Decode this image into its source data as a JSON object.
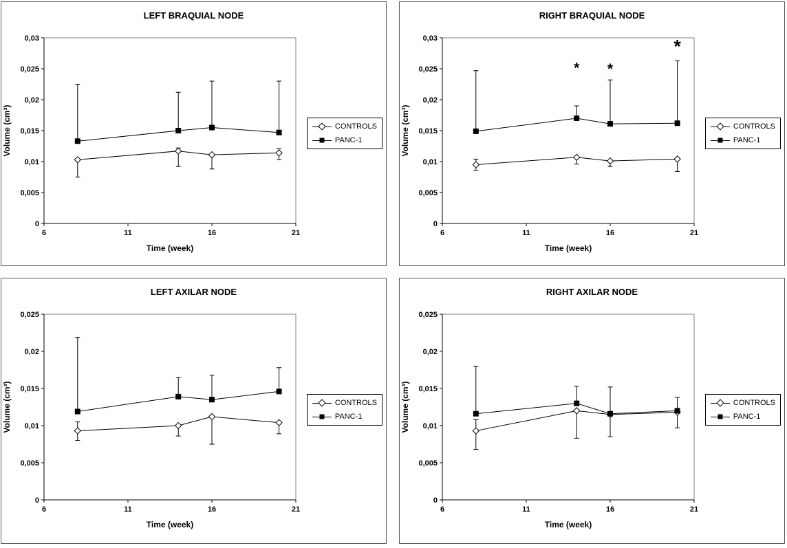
{
  "chart_data": [
    {
      "type": "line",
      "title": "LEFT BRAQUIAL NODE",
      "xlabel": "Time (week)",
      "ylabel": "Volume (cm³)",
      "xlim": [
        6,
        21
      ],
      "xticks": [
        6,
        11,
        16,
        21
      ],
      "xtick_labels": [
        "6",
        "11",
        "16",
        "21"
      ],
      "ylim": [
        0,
        0.03
      ],
      "yticks": [
        0,
        0.005,
        0.01,
        0.015,
        0.02,
        0.025,
        0.03
      ],
      "ytick_labels": [
        "0",
        "0,005",
        "0,01",
        "0,015",
        "0,02",
        "0,025",
        "0,03"
      ],
      "x": [
        8,
        14,
        16,
        20
      ],
      "grid": false,
      "legend_position": "right",
      "series": [
        {
          "name": "CONTROLS",
          "marker": "diamond",
          "values": [
            0.0103,
            0.0117,
            0.0111,
            0.0114
          ],
          "err_hi": [
            null,
            0.0122,
            null,
            0.0121
          ],
          "err_lo": [
            0.0075,
            0.0092,
            0.0088,
            0.0103
          ]
        },
        {
          "name": "PANC-1",
          "marker": "square",
          "values": [
            0.0133,
            0.015,
            0.0155,
            0.0147
          ],
          "err_hi": [
            0.0225,
            0.0212,
            0.023,
            0.023
          ],
          "err_lo": [
            null,
            null,
            null,
            null
          ]
        }
      ],
      "annotations": []
    },
    {
      "type": "line",
      "title": "RIGHT BRAQUIAL NODE",
      "xlabel": "Time (week)",
      "ylabel": "Volume (cm³)",
      "xlim": [
        6,
        21
      ],
      "xticks": [
        6,
        11,
        16,
        21
      ],
      "xtick_labels": [
        "6",
        "11",
        "16",
        "21"
      ],
      "ylim": [
        0,
        0.03
      ],
      "yticks": [
        0,
        0.005,
        0.01,
        0.015,
        0.02,
        0.025,
        0.03
      ],
      "ytick_labels": [
        "0",
        "0,005",
        "0,01",
        "0,015",
        "0,02",
        "0,025",
        "0,03"
      ],
      "x": [
        8,
        14,
        16,
        20
      ],
      "grid": false,
      "legend_position": "right",
      "series": [
        {
          "name": "CONTROLS",
          "marker": "diamond",
          "values": [
            0.0095,
            0.0107,
            0.0101,
            0.0104
          ],
          "err_hi": [
            0.0104,
            null,
            null,
            null
          ],
          "err_lo": [
            0.0086,
            0.0096,
            0.0092,
            0.0084
          ]
        },
        {
          "name": "PANC-1",
          "marker": "square",
          "values": [
            0.0149,
            0.017,
            0.0161,
            0.0162
          ],
          "err_hi": [
            0.0247,
            0.019,
            0.0232,
            0.0263
          ],
          "err_lo": [
            null,
            null,
            null,
            null
          ]
        }
      ],
      "annotations": [
        {
          "x": 14,
          "y": 0.0244,
          "text": "*",
          "size": 21
        },
        {
          "x": 16,
          "y": 0.0242,
          "text": "*",
          "size": 21
        },
        {
          "x": 20,
          "y": 0.0276,
          "text": "*",
          "size": 27
        }
      ]
    },
    {
      "type": "line",
      "title": "LEFT AXILAR NODE",
      "xlabel": "Time (week)",
      "ylabel": "Volume (cm³)",
      "xlim": [
        6,
        21
      ],
      "xticks": [
        6,
        11,
        16,
        21
      ],
      "xtick_labels": [
        "6",
        "11",
        "16",
        "21"
      ],
      "ylim": [
        0,
        0.025
      ],
      "yticks": [
        0,
        0.005,
        0.01,
        0.015,
        0.02,
        0.025
      ],
      "ytick_labels": [
        "0",
        "0,005",
        "0,01",
        "0,015",
        "0,02",
        "0,025"
      ],
      "x": [
        8,
        14,
        16,
        20
      ],
      "grid": false,
      "legend_position": "right",
      "series": [
        {
          "name": "CONTROLS",
          "marker": "diamond",
          "values": [
            0.0093,
            0.01,
            0.0112,
            0.0104
          ],
          "err_hi": [
            0.0105,
            null,
            null,
            null
          ],
          "err_lo": [
            0.008,
            0.0086,
            0.0075,
            0.0089
          ]
        },
        {
          "name": "PANC-1",
          "marker": "square",
          "values": [
            0.0119,
            0.0139,
            0.0135,
            0.0146
          ],
          "err_hi": [
            0.0219,
            0.0165,
            0.0168,
            0.0178
          ],
          "err_lo": [
            null,
            null,
            null,
            null
          ]
        }
      ],
      "annotations": []
    },
    {
      "type": "line",
      "title": "RIGHT AXILAR NODE",
      "xlabel": "Time (week)",
      "ylabel": "Volume (cm³)",
      "xlim": [
        6,
        21
      ],
      "xticks": [
        6,
        11,
        16,
        21
      ],
      "xtick_labels": [
        "6",
        "11",
        "16",
        "21"
      ],
      "ylim": [
        0,
        0.025
      ],
      "yticks": [
        0,
        0.005,
        0.01,
        0.015,
        0.02,
        0.025
      ],
      "ytick_labels": [
        "0",
        "0,005",
        "0,01",
        "0,015",
        "0,02",
        "0,025"
      ],
      "x": [
        8,
        14,
        16,
        20
      ],
      "grid": false,
      "legend_position": "right",
      "series": [
        {
          "name": "CONTROLS",
          "marker": "diamond",
          "values": [
            0.0093,
            0.012,
            0.0115,
            0.0118
          ],
          "err_hi": [
            0.0108,
            null,
            null,
            null
          ],
          "err_lo": [
            0.0068,
            0.0083,
            0.0085,
            0.0097
          ]
        },
        {
          "name": "PANC-1",
          "marker": "square",
          "values": [
            0.0116,
            0.013,
            0.0116,
            0.012
          ],
          "err_hi": [
            0.018,
            0.0153,
            0.0152,
            0.0138
          ],
          "err_lo": [
            null,
            null,
            null,
            null
          ]
        }
      ],
      "annotations": []
    }
  ],
  "colors": {
    "line": "#000000",
    "marker_fill": "#000000",
    "diamond_fill": "#ffffff",
    "panel_border": "#595959",
    "plot_border": "#808080"
  }
}
